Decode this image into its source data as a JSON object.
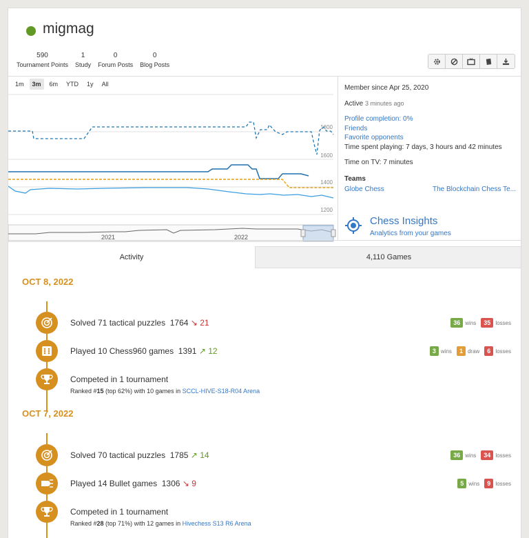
{
  "profile": {
    "username": "migmag",
    "status_color": "#629924"
  },
  "stats": [
    {
      "num": "590",
      "label": "Tournament Points"
    },
    {
      "num": "1",
      "label": "Study"
    },
    {
      "num": "0",
      "label": "Forum Posts"
    },
    {
      "num": "0",
      "label": "Blog Posts"
    }
  ],
  "toolbar": {
    "icons": [
      "gear-icon",
      "block-icon",
      "tv-icon",
      "book-icon",
      "download-icon"
    ]
  },
  "chart": {
    "ranges": [
      "1m",
      "3m",
      "6m",
      "YTD",
      "1y",
      "All"
    ],
    "active_range": "3m",
    "y_ticks": [
      "1800",
      "1600",
      "1400",
      "1200"
    ],
    "nav_years": [
      "2021",
      "2022"
    ]
  },
  "info": {
    "member_since": "Member since Apr 25, 2020",
    "active_label": "Active",
    "active_time": "3 minutes ago",
    "profile_completion": "Profile completion: 0%",
    "friends": "Friends",
    "favorite_opponents": "Favorite opponents",
    "time_playing": "Time spent playing: 7 days, 3 hours and 42 minutes",
    "time_tv": "Time on TV: 7 minutes",
    "teams_heading": "Teams",
    "team1": "Globe Chess",
    "team2": "The Blockchain Chess Te..."
  },
  "insights": {
    "title": "Chess Insights",
    "subtitle": "Analytics from your games"
  },
  "tabs": {
    "activity": "Activity",
    "games": "4,110 Games"
  },
  "activity": {
    "days": [
      {
        "date": "OCT 8, 2022",
        "entries": [
          {
            "text": "Solved 71 tactical puzzles",
            "rating": "1764",
            "delta": "21",
            "dir": "down",
            "wins": "36",
            "losses": "35"
          },
          {
            "text": "Played 10 Chess960 games",
            "rating": "1391",
            "delta": "12",
            "dir": "up",
            "wins": "3",
            "draws": "1",
            "losses": "6"
          },
          {
            "text": "Competed in 1 tournament",
            "ranked_prefix": "Ranked #",
            "rank": "15",
            "rank_suffix": " (top 62%) with 10 games in ",
            "tournament": "SCCL-HIVE-S18-R04 Arena"
          }
        ]
      },
      {
        "date": "OCT 7, 2022",
        "entries": [
          {
            "text": "Solved 70 tactical puzzles",
            "rating": "1785",
            "delta": "14",
            "dir": "up",
            "wins": "36",
            "losses": "34"
          },
          {
            "text": "Played 14 Bullet games",
            "rating": "1306",
            "delta": "9",
            "dir": "down",
            "wins": "5",
            "losses": "9"
          },
          {
            "text": "Competed in 1 tournament",
            "ranked_prefix": "Ranked #",
            "rank": "28",
            "rank_suffix": " (top 71%) with 12 games in ",
            "tournament": "Hivechess S13 R6 Arena"
          }
        ]
      }
    ],
    "labels": {
      "wins": "wins",
      "losses": "losses",
      "draw": "draw"
    }
  },
  "colors": {
    "accent": "#d59020",
    "link": "#3277c8",
    "win": "#78a947",
    "loss": "#d9534f",
    "draw": "#e39d38"
  }
}
